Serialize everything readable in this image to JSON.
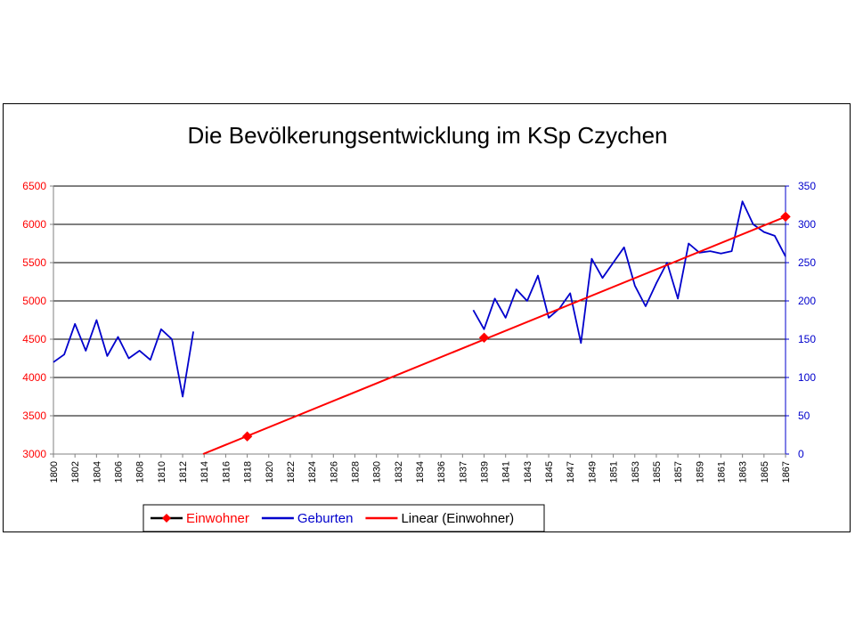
{
  "chart_data": {
    "type": "line",
    "title": "Die Bevölkerungsentwicklung im KSp Czychen",
    "x_labels": [
      "1800",
      "1802",
      "1804",
      "1806",
      "1808",
      "1810",
      "1812",
      "1814",
      "1816",
      "1818",
      "1820",
      "1822",
      "1824",
      "1826",
      "1828",
      "1830",
      "1832",
      "1834",
      "1836",
      "1837",
      "1839",
      "1841",
      "1843",
      "1845",
      "1847",
      "1849",
      "1851",
      "1853",
      "1855",
      "1857",
      "1859",
      "1861",
      "1863",
      "1865",
      "1867"
    ],
    "y_left": {
      "ticks": [
        3000,
        3500,
        4000,
        4500,
        5000,
        5500,
        6000,
        6500
      ],
      "range": [
        3000,
        6500
      ],
      "color": "#ff0000"
    },
    "y_right": {
      "ticks": [
        0,
        50,
        100,
        150,
        200,
        250,
        300,
        350
      ],
      "range": [
        0,
        350
      ],
      "color": "#0000cc"
    },
    "grid": true,
    "legend_position": "bottom",
    "series": [
      {
        "name": "Einwohner",
        "axis": "left",
        "color": "#ff0000",
        "marker": "diamond",
        "points": [
          [
            1818,
            3230
          ],
          [
            1839,
            4520
          ],
          [
            1867,
            6100
          ]
        ]
      },
      {
        "name": "Geburten",
        "axis": "right",
        "color": "#0000cc",
        "segments": [
          [
            [
              1800,
              120
            ],
            [
              1801,
              130
            ],
            [
              1802,
              170
            ],
            [
              1803,
              135
            ],
            [
              1804,
              175
            ],
            [
              1805,
              128
            ],
            [
              1806,
              153
            ],
            [
              1807,
              125
            ],
            [
              1808,
              135
            ],
            [
              1809,
              123
            ],
            [
              1810,
              163
            ],
            [
              1811,
              150
            ],
            [
              1812,
              75
            ],
            [
              1813,
              160
            ]
          ],
          [
            [
              1838,
              188
            ],
            [
              1839,
              163
            ],
            [
              1840,
              203
            ],
            [
              1841,
              178
            ],
            [
              1842,
              215
            ],
            [
              1843,
              200
            ],
            [
              1844,
              233
            ],
            [
              1845,
              178
            ],
            [
              1846,
              190
            ],
            [
              1847,
              210
            ],
            [
              1848,
              145
            ],
            [
              1849,
              255
            ],
            [
              1850,
              230
            ],
            [
              1851,
              250
            ],
            [
              1852,
              270
            ],
            [
              1853,
              220
            ],
            [
              1854,
              193
            ],
            [
              1855,
              223
            ],
            [
              1856,
              250
            ],
            [
              1857,
              203
            ],
            [
              1858,
              275
            ],
            [
              1859,
              263
            ],
            [
              1860,
              265
            ],
            [
              1861,
              262
            ],
            [
              1862,
              265
            ],
            [
              1863,
              330
            ],
            [
              1864,
              300
            ],
            [
              1865,
              290
            ],
            [
              1866,
              285
            ],
            [
              1867,
              258
            ]
          ]
        ]
      },
      {
        "name": "Linear (Einwohner)",
        "axis": "left",
        "color": "#ff0000",
        "trend": {
          "type": "linear",
          "from": [
            1813.9,
            3000
          ],
          "to": [
            1867,
            6100
          ]
        }
      }
    ]
  }
}
